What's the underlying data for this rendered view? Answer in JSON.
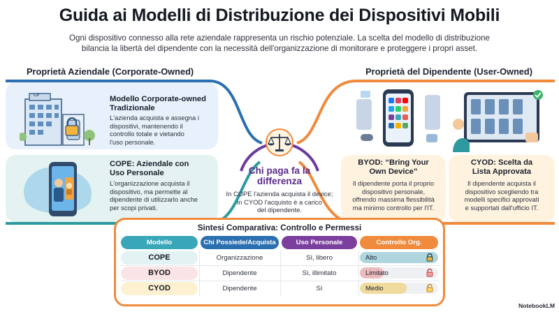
{
  "header": {
    "title": "Guida ai Modelli di Distribuzione dei Dispositivi Mobili",
    "subtitle_lines": [
      "Ogni dispositivo connesso alla rete aziendale rappresenta un rischio potenziale. La scelta del modello di distribuzione",
      "bilancia la libertà del dipendente con la necessità dell'organizzazione di monitorare e proteggere i propri asset."
    ]
  },
  "sections": {
    "left": "Proprietà Aziendale (Corporate-Owned)",
    "right": "Proprietà del Dipendente (User-Owned)"
  },
  "cards": {
    "corporate": {
      "title_lines": [
        "Modello Corporate-owned",
        "Tradizionale"
      ],
      "text_lines": [
        "L'azienda acquista e assegna i",
        "dispositivi, mantenendo il",
        "controllo totale e vietando",
        "l'uso personale."
      ],
      "building_label": "CP"
    },
    "cope": {
      "title_lines": [
        "COPE: Aziendale con",
        "Uso Personale"
      ],
      "text_lines": [
        "L'organizzazione acquista il",
        "dispositivo, ma permette al",
        "dipendente di utilizzarlo anche",
        "per scopi privati."
      ]
    },
    "byod": {
      "title_lines": [
        "BYOD: “Bring Your",
        "Own Device”"
      ],
      "text_lines": [
        "Il dipendente porta il proprio",
        "dispositivo personale,",
        "offrendo massima flessibilità",
        "ma minimo controllo per l'IT."
      ]
    },
    "cyod": {
      "title_lines": [
        "CYOD: Scelta da",
        "Lista Approvata"
      ],
      "text_lines": [
        "Il dipendente acquista il",
        "dispositivo scegliendo tra",
        "modelli specifici approvati",
        "e supportati dall'ufficio IT."
      ]
    }
  },
  "center": {
    "title_lines": [
      "Chi paga fa la",
      "differenza"
    ],
    "text_lines": [
      "In COPE l'azienda acquista il device;",
      "in CYOD l'acquisto è a carico",
      "del dipendente."
    ]
  },
  "table": {
    "title": "Sintesi Comparativa: Controllo e Permessi",
    "headers": [
      "Modello",
      "Chi Possiede/Acquista",
      "Uso Personale",
      "Controllo Org."
    ],
    "header_colors": [
      "#3aa6b9",
      "#2a6fb0",
      "#7b3f9e",
      "#f08a3c"
    ],
    "rows": [
      {
        "model": "COPE",
        "owner": "Organizzazione",
        "personal_use": "Sì, libero",
        "control": "Alto",
        "control_level": 1.0,
        "row_color": "#e3f2f3",
        "fill_color": "#3aa6b9",
        "lock": "locked"
      },
      {
        "model": "BYOD",
        "owner": "Dipendente",
        "personal_use": "Sì, illimitato",
        "control": "Limitato",
        "control_level": 0.3,
        "row_color": "#fbe4e6",
        "fill_color": "#e65b5b",
        "lock": "unlocked"
      },
      {
        "model": "CYOD",
        "owner": "Dipendente",
        "personal_use": "Sì",
        "control": "Medio",
        "control_level": 0.6,
        "row_color": "#fdf1d2",
        "fill_color": "#f6b100",
        "lock": "unlocked"
      }
    ]
  },
  "brand": "NotebookLM",
  "colors": {
    "teal": "#3aa6b9",
    "blue": "#2a6fb0",
    "purple": "#7b3f9e",
    "orange": "#f08a3c"
  }
}
